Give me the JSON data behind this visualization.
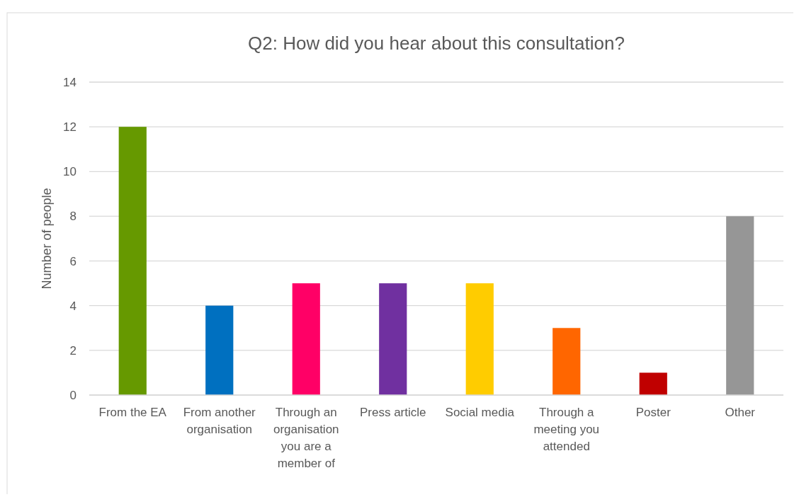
{
  "chart_data": {
    "type": "bar",
    "title": "Q2: How did you hear about this consultation?",
    "ylabel": "Number of people",
    "categories": [
      "From the EA",
      "From another organisation",
      "Through an organisation you are a member of",
      "Press article",
      "Social media",
      "Through a meeting you attended",
      "Poster",
      "Other"
    ],
    "values": [
      12,
      4,
      5,
      5,
      5,
      3,
      1,
      8
    ],
    "colors": [
      "#669900",
      "#0070c0",
      "#ff0066",
      "#7030a0",
      "#ffcc00",
      "#ff6600",
      "#c00000",
      "#969696"
    ],
    "ylim": [
      0,
      14
    ],
    "yticks": [
      0,
      2,
      4,
      6,
      8,
      10,
      12,
      14
    ],
    "grid": "y"
  }
}
